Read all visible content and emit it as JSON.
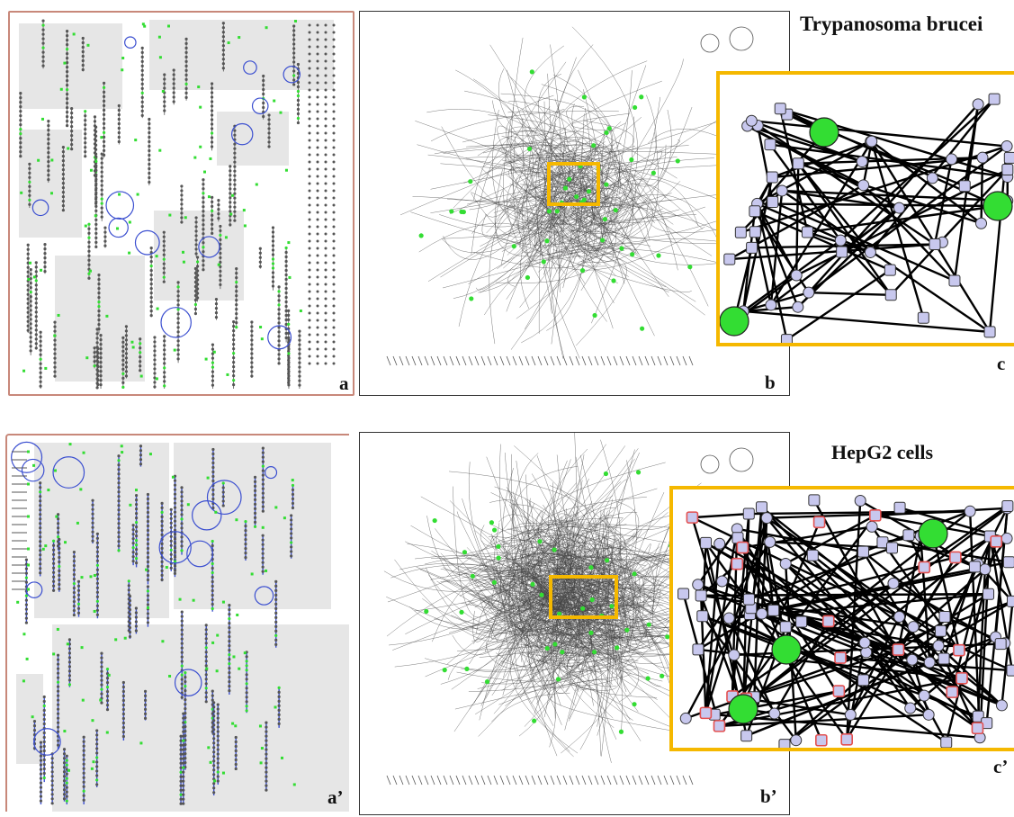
{
  "figure": {
    "top_row": {
      "organism_label": "Trypanosoma brucei",
      "panel_labels": {
        "a": "a",
        "b": "b",
        "c": "c"
      }
    },
    "bottom_row": {
      "organism_label": "HepG2 cells",
      "panel_labels": {
        "a": "a’",
        "b": "b’",
        "c": "c’"
      }
    }
  },
  "colors": {
    "pathway_line": "#3b4fd0",
    "metabolite_node": "#c8c8ee",
    "highlight_node": "#33dd33",
    "zoom_frame": "#f5b800",
    "panel_a_border": "#c8887a",
    "gray_block": "#e6e6e6",
    "mismatch_outline": "#e35050"
  }
}
